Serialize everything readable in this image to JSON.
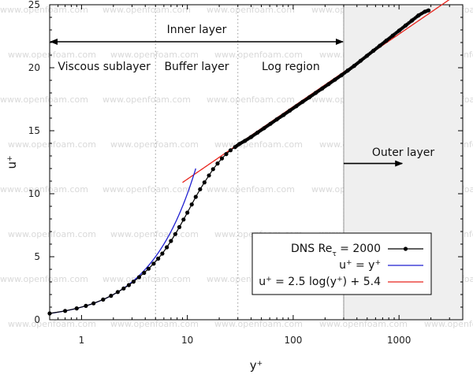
{
  "chart_data": {
    "type": "line",
    "xscale": "log",
    "xlim": [
      0.5,
      4000
    ],
    "ylim": [
      0,
      25
    ],
    "xticks": [
      1,
      10,
      100,
      1000
    ],
    "xtick_labels": [
      "1",
      "10",
      "100",
      "1000"
    ],
    "yticks": [
      0,
      5,
      10,
      15,
      20,
      25
    ],
    "ytick_labels": [
      "0",
      "5",
      "10",
      "15",
      "20",
      "25"
    ],
    "xlabel_base": "y",
    "xlabel_sup": "+",
    "ylabel_base": "u",
    "ylabel_sup": "+",
    "grid": false,
    "regions": [
      {
        "label": "Viscous sublayer",
        "x_from": 0.5,
        "x_to": 5
      },
      {
        "label": "Buffer layer",
        "x_from": 5,
        "x_to": 30
      },
      {
        "label": "Log region",
        "x_from": 30,
        "x_to": 300
      },
      {
        "label": "Outer layer",
        "x_from": 300,
        "x_to": 4000,
        "shaded": true
      }
    ],
    "region_boundaries": [
      5,
      30,
      300
    ],
    "inner_layer_label": "Inner layer",
    "inner_layer_span": [
      0.5,
      300
    ],
    "inner_layer_y": 22,
    "outer_layer_arrow_y": 12.4,
    "outer_layer_arrow_x": [
      300,
      1000
    ],
    "series": [
      {
        "name": "DNS Re_τ = 2000",
        "color": "#000000",
        "x": [
          0.5,
          0.7,
          0.9,
          1.1,
          1.3,
          1.6,
          1.9,
          2.2,
          2.5,
          2.8,
          3.1,
          3.5,
          3.9,
          4.3,
          4.8,
          5.3,
          5.8,
          6.4,
          7.0,
          7.7,
          8.4,
          9.2,
          10.0,
          11.0,
          12.0,
          13.2,
          14.5,
          16.0,
          17.5,
          19.3,
          21.2,
          23.3,
          25.6,
          28.2,
          31.0,
          35,
          40,
          46,
          53,
          61,
          70,
          81,
          93,
          107,
          123,
          142,
          163,
          188,
          216,
          248,
          285,
          328,
          377,
          433,
          498,
          573,
          659,
          758,
          872,
          1003,
          1153,
          1326,
          1525,
          1754,
          1900
        ],
        "y": [
          0.5,
          0.7,
          0.9,
          1.1,
          1.3,
          1.6,
          1.9,
          2.2,
          2.48,
          2.75,
          3.02,
          3.38,
          3.72,
          4.05,
          4.45,
          4.85,
          5.25,
          5.75,
          6.25,
          6.8,
          7.35,
          7.95,
          8.5,
          9.15,
          9.75,
          10.35,
          10.9,
          11.45,
          11.95,
          12.4,
          12.8,
          13.15,
          13.45,
          13.7,
          13.95,
          14.2,
          14.5,
          14.85,
          15.2,
          15.55,
          15.9,
          16.25,
          16.6,
          16.95,
          17.3,
          17.65,
          18.0,
          18.35,
          18.7,
          19.05,
          19.4,
          19.78,
          20.15,
          20.55,
          20.95,
          21.35,
          21.75,
          22.15,
          22.55,
          22.95,
          23.35,
          23.75,
          24.15,
          24.45,
          24.55
        ],
        "marker_size": 2.6
      },
      {
        "name": "u+ = y+",
        "color": "#1f1fd0",
        "function": "u = y",
        "x_range": [
          0.5,
          12
        ]
      },
      {
        "name": "u+ = 2.5 log(y+) + 5.4",
        "color": "#e8241c",
        "function": "u = 2.5*ln(y) + 5.4",
        "x_range": [
          9,
          3000
        ]
      }
    ],
    "legend": {
      "position": "lower-right",
      "entries": [
        {
          "base": "DNS Re",
          "sub": "τ",
          "rest": " = 2000",
          "color": "#000000",
          "marker": true
        },
        {
          "base": "u",
          "sup1": "+",
          "mid": " = y",
          "sup2": "+",
          "color": "#1f1fd0",
          "marker": false
        },
        {
          "base": "u",
          "sup1": "+",
          "mid": " = 2.5 log(y",
          "sup2": "+",
          "tail": ") + 5.4",
          "color": "#e8241c",
          "marker": false
        }
      ]
    }
  },
  "watermark": "www.openfoam.com"
}
